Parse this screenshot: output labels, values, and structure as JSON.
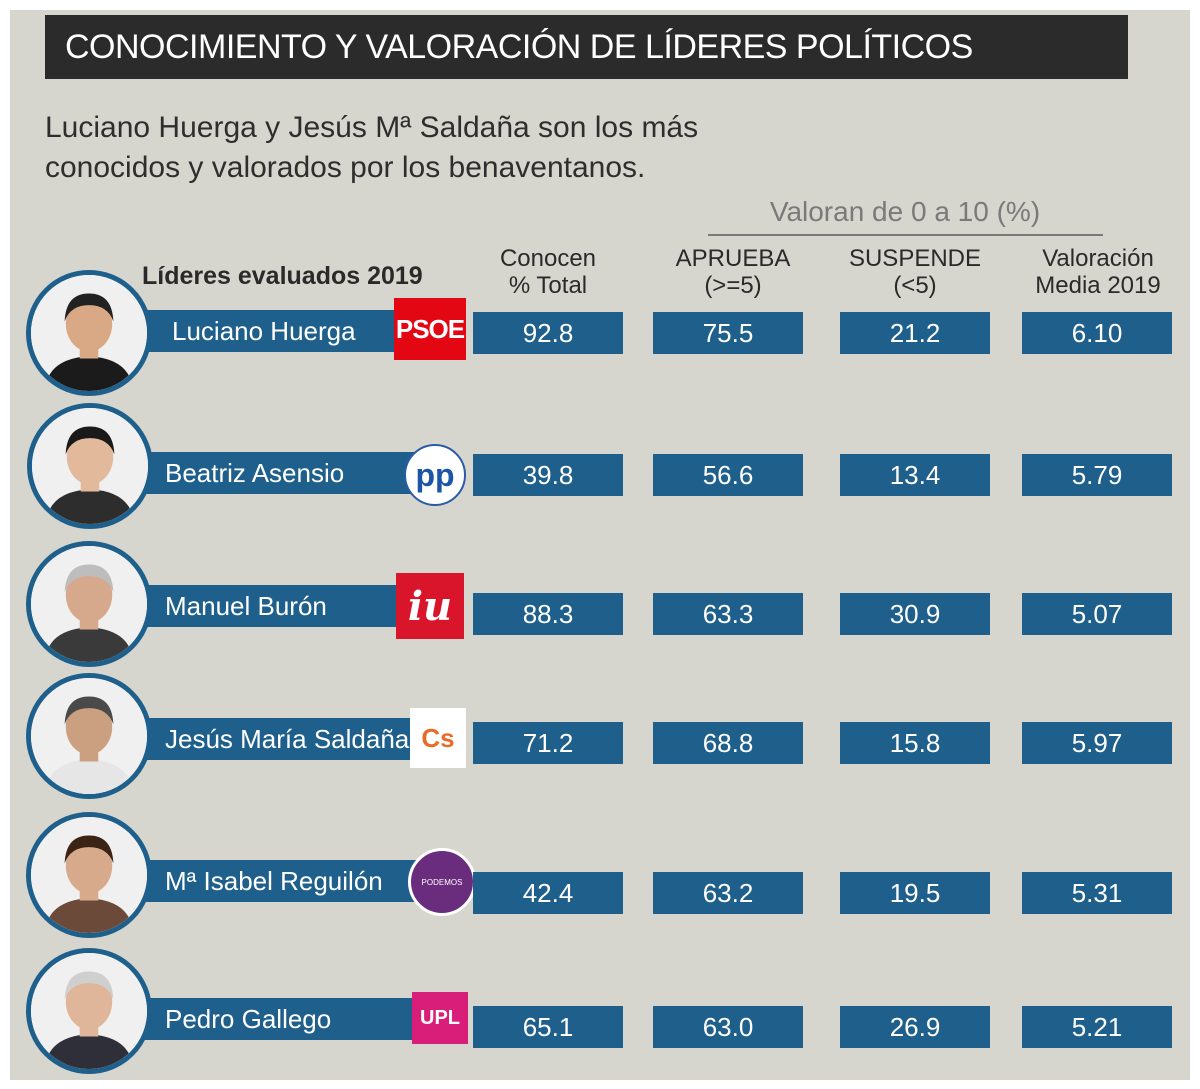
{
  "header": {
    "title": "CONOCIMIENTO Y VALORACIÓN DE LÍDERES POLÍTICOS",
    "subtitle_line1": "Luciano Huerga y Jesús Mª Saldaña son los más",
    "subtitle_line2": "conocidos y valorados por los benaventanos."
  },
  "group_label": "Valoran de 0 a 10 (%)",
  "leaders_label": "Líderes evaluados 2019",
  "columns": [
    {
      "line1": "Conocen",
      "line2": "% Total"
    },
    {
      "line1": "APRUEBA",
      "line2": "(>=5)"
    },
    {
      "line1": "SUSPENDE",
      "line2": "(<5)"
    },
    {
      "line1": "Valoración",
      "line2": "Media 2019"
    }
  ],
  "chart_data": {
    "type": "table",
    "title": "CONOCIMIENTO Y VALORACIÓN DE LÍDERES POLÍTICOS",
    "subtitle": "Luciano Huerga y Jesús Mª Saldaña son los más conocidos y valorados por los benaventanos.",
    "columns": [
      "Conocen % Total",
      "APRUEBA (>=5)",
      "SUSPENDE (<5)",
      "Valoración Media 2019"
    ],
    "rows": [
      {
        "name": "Luciano Huerga",
        "party_logo": "PSOE",
        "values": [
          "92.8",
          "75.5",
          "21.2",
          "6.10"
        ]
      },
      {
        "name": "Beatriz Asensio",
        "party_logo": "pp",
        "values": [
          "39.8",
          "56.6",
          "13.4",
          "5.79"
        ]
      },
      {
        "name": "Manuel Burón",
        "party_logo": "iu",
        "values": [
          "88.3",
          "63.3",
          "30.9",
          "5.07"
        ]
      },
      {
        "name": "Jesús María Saldaña",
        "party_logo": "Cs",
        "values": [
          "71.2",
          "68.8",
          "15.8",
          "5.97"
        ]
      },
      {
        "name": "Mª Isabel Reguilón",
        "party_logo": "PODEMOS",
        "values": [
          "42.4",
          "63.2",
          "19.5",
          "5.31"
        ]
      },
      {
        "name": "Pedro Gallego",
        "party_logo": "UPL",
        "values": [
          "65.1",
          "63.0",
          "26.9",
          "5.21"
        ]
      }
    ]
  },
  "colors": {
    "bar": "#1e5f8b",
    "panel": "#d6d6ce",
    "title_bg": "#2b2b2b",
    "psoe": "#e30613",
    "pp": "#1d55a6",
    "iu": "#d8152a",
    "cs": "#eb6a28",
    "podemos": "#6a2c7d",
    "upl": "#d81e79"
  },
  "icons": [
    "person-photo-icon",
    "psoe-logo",
    "pp-logo",
    "iu-logo",
    "cs-logo",
    "podemos-logo",
    "upl-logo"
  ]
}
